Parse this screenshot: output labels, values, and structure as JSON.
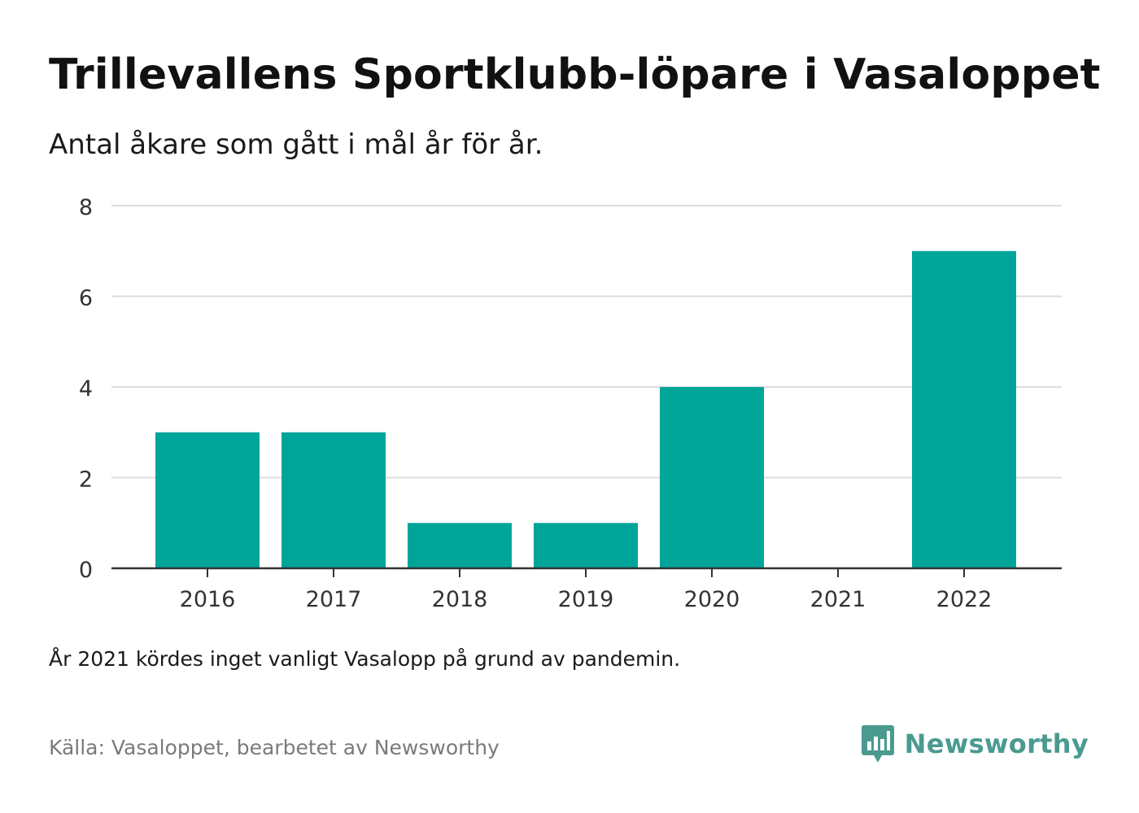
{
  "header": {
    "title": "Trillevallens Sportklubb-löpare i Vasaloppet",
    "subtitle": "Antal åkare som gått i mål år för år."
  },
  "footer": {
    "note": "År 2021 kördes inget vanligt Vasalopp på grund av pandemin.",
    "source": "Källa: Vasaloppet, bearbetet av Newsworthy",
    "brand_name": "Newsworthy",
    "brand_icon": "bar-chart-speech-bubble-icon"
  },
  "colors": {
    "bar": "#00a59a",
    "brand": "#4a9a90",
    "grid": "#dddddd",
    "axis": "#333333"
  },
  "chart_data": {
    "type": "bar",
    "categories": [
      "2016",
      "2017",
      "2018",
      "2019",
      "2020",
      "2021",
      "2022"
    ],
    "values": [
      3,
      3,
      1,
      1,
      4,
      0,
      7
    ],
    "ylim": [
      0,
      8
    ],
    "yticks": [
      "0",
      "2",
      "4",
      "6",
      "8"
    ],
    "xlabel": "",
    "ylabel": "",
    "grid": true,
    "legend": "none"
  }
}
